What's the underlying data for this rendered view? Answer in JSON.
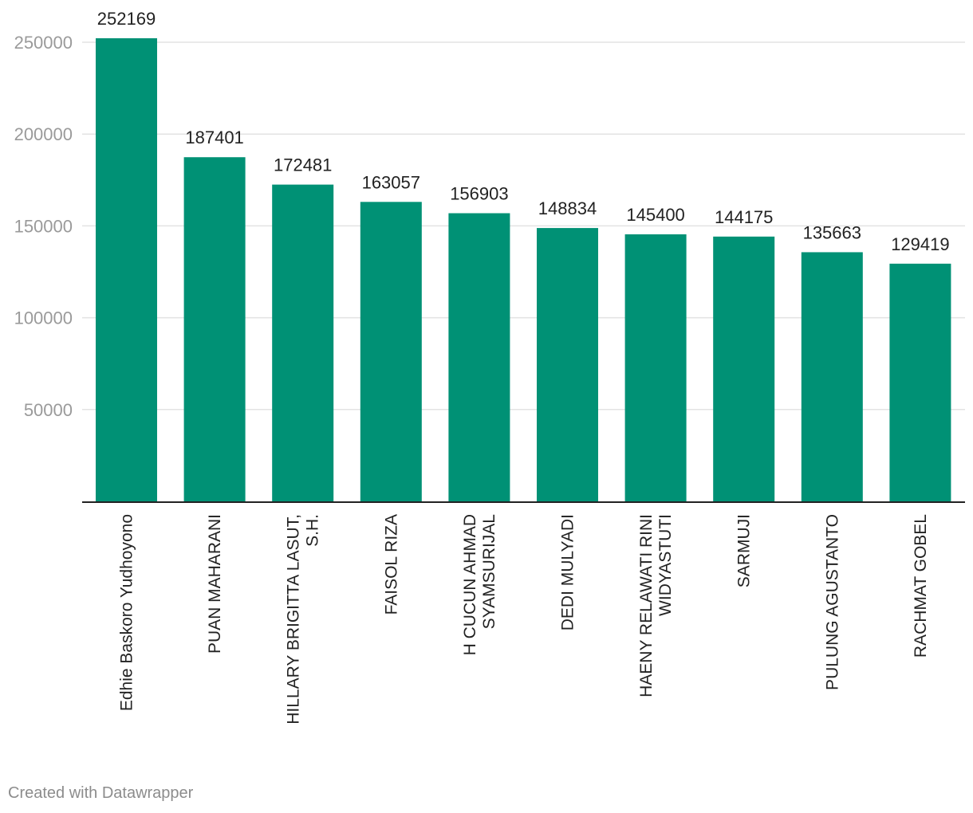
{
  "chart_data": {
    "type": "bar",
    "categories": [
      [
        "Edhie Baskoro Yudhoyono"
      ],
      [
        "PUAN MAHARANI"
      ],
      [
        "HILLARY BRIGITTA LASUT,",
        "S.H."
      ],
      [
        "FAISOL RIZA"
      ],
      [
        "H CUCUN AHMAD",
        "SYAMSURIJAL"
      ],
      [
        "DEDI MULYADI"
      ],
      [
        "HAENY RELAWATI RINI",
        "WIDYASTUTI"
      ],
      [
        "SARMUJI"
      ],
      [
        "PULUNG AGUSTANTO"
      ],
      [
        "RACHMAT GOBEL"
      ]
    ],
    "values": [
      252169,
      187401,
      172481,
      163057,
      156903,
      148834,
      145400,
      144175,
      135663,
      129419
    ],
    "value_labels": [
      "252169",
      "187401",
      "172481",
      "163057",
      "156903",
      "148834",
      "145400",
      "144175",
      "135663",
      "129419"
    ],
    "yticks": [
      50000,
      100000,
      150000,
      200000,
      250000
    ],
    "ytick_labels": [
      "50000",
      "100000",
      "150000",
      "200000",
      "250000"
    ],
    "ylim": [
      0,
      252169
    ],
    "grid": true,
    "title": "",
    "xlabel": "",
    "ylabel": "",
    "bar_color": "#009175",
    "grid_color": "#e3e3e3",
    "axis_color": "#222222"
  },
  "footer": {
    "credit": "Created with Datawrapper"
  }
}
